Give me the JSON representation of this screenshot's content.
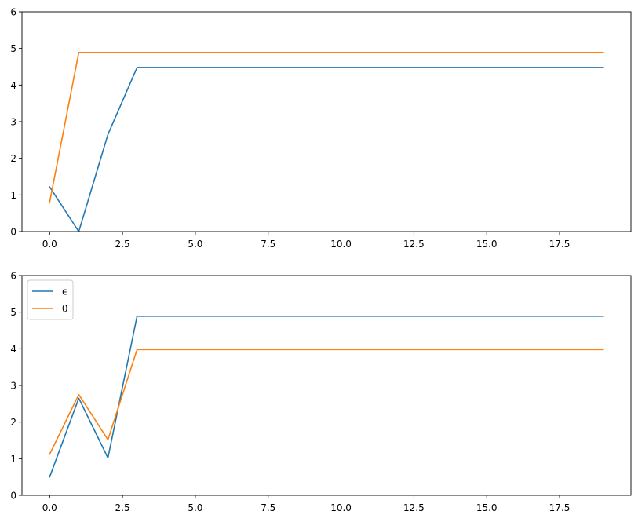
{
  "chart_data": [
    {
      "type": "line",
      "x": [
        0,
        1,
        2,
        3,
        4,
        5,
        6,
        7,
        8,
        9,
        10,
        11,
        12,
        13,
        14,
        15,
        16,
        17,
        18,
        19
      ],
      "xlim": [
        -0.95,
        19.95
      ],
      "ylim": [
        0,
        6
      ],
      "xticks": [
        0.0,
        2.5,
        5.0,
        7.5,
        10.0,
        12.5,
        15.0,
        17.5
      ],
      "xtick_labels": [
        "0.0",
        "2.5",
        "5.0",
        "7.5",
        "10.0",
        "12.5",
        "15.0",
        "17.5"
      ],
      "yticks": [
        0,
        1,
        2,
        3,
        4,
        5,
        6
      ],
      "ytick_labels": [
        "0",
        "1",
        "2",
        "3",
        "4",
        "5",
        "6"
      ],
      "grid": false,
      "legend": null,
      "series": [
        {
          "color": "#1f77b4",
          "values": [
            1.22,
            0.0,
            2.65,
            4.48,
            4.48,
            4.48,
            4.48,
            4.48,
            4.48,
            4.48,
            4.48,
            4.48,
            4.48,
            4.48,
            4.48,
            4.48,
            4.48,
            4.48,
            4.48,
            4.48
          ]
        },
        {
          "color": "#ff7f0e",
          "values": [
            0.8,
            4.89,
            4.89,
            4.89,
            4.89,
            4.89,
            4.89,
            4.89,
            4.89,
            4.89,
            4.89,
            4.89,
            4.89,
            4.89,
            4.89,
            4.89,
            4.89,
            4.89,
            4.89,
            4.89
          ]
        }
      ]
    },
    {
      "type": "line",
      "x": [
        0,
        1,
        2,
        3,
        4,
        5,
        6,
        7,
        8,
        9,
        10,
        11,
        12,
        13,
        14,
        15,
        16,
        17,
        18,
        19
      ],
      "xlim": [
        -0.95,
        19.95
      ],
      "ylim": [
        0,
        6
      ],
      "xticks": [
        0.0,
        2.5,
        5.0,
        7.5,
        10.0,
        12.5,
        15.0,
        17.5
      ],
      "xtick_labels": [
        "0.0",
        "2.5",
        "5.0",
        "7.5",
        "10.0",
        "12.5",
        "15.0",
        "17.5"
      ],
      "yticks": [
        0,
        1,
        2,
        3,
        4,
        5,
        6
      ],
      "ytick_labels": [
        "0",
        "1",
        "2",
        "3",
        "4",
        "5",
        "6"
      ],
      "grid": false,
      "legend": "top-left",
      "series": [
        {
          "name": "ϵ",
          "color": "#1f77b4",
          "values": [
            0.5,
            2.65,
            1.02,
            4.89,
            4.89,
            4.89,
            4.89,
            4.89,
            4.89,
            4.89,
            4.89,
            4.89,
            4.89,
            4.89,
            4.89,
            4.89,
            4.89,
            4.89,
            4.89,
            4.89
          ]
        },
        {
          "name": "θ",
          "color": "#ff7f0e",
          "values": [
            1.12,
            2.75,
            1.52,
            3.98,
            3.98,
            3.98,
            3.98,
            3.98,
            3.98,
            3.98,
            3.98,
            3.98,
            3.98,
            3.98,
            3.98,
            3.98,
            3.98,
            3.98,
            3.98,
            3.98
          ]
        }
      ]
    }
  ]
}
